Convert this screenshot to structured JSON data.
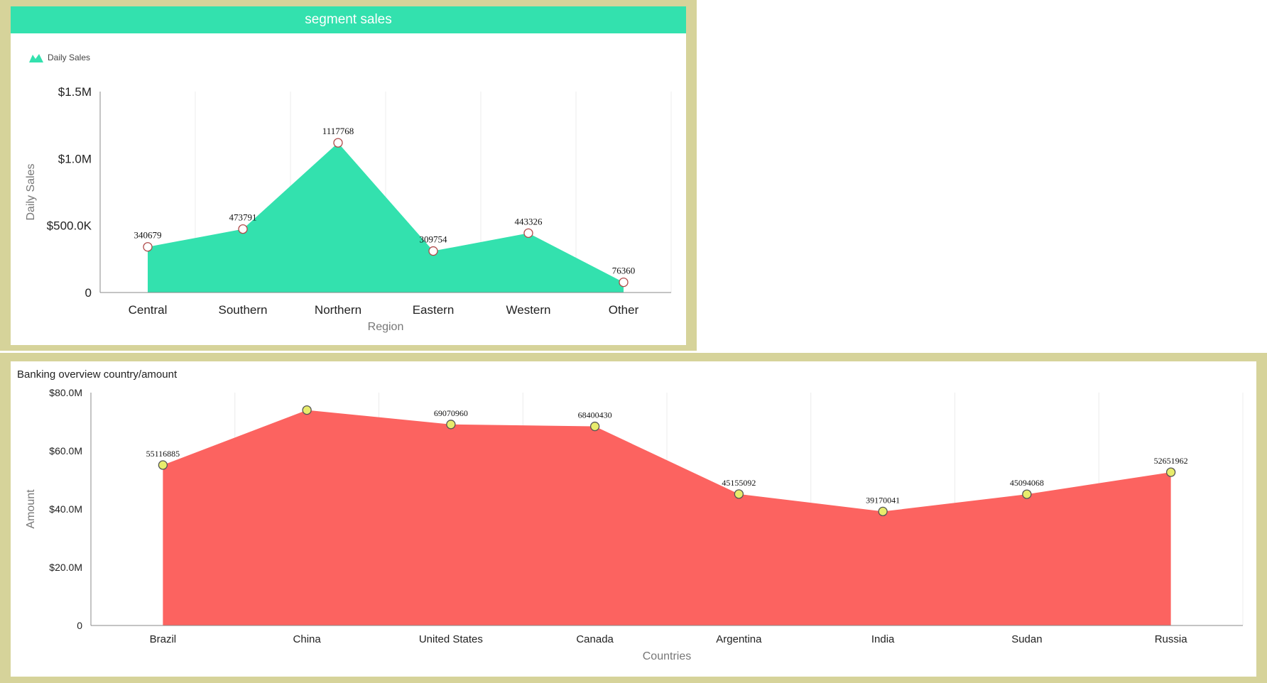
{
  "chart_data": [
    {
      "type": "area",
      "title": "segment sales",
      "legend": "Daily Sales",
      "xlabel": "Region",
      "ylabel": "Daily Sales",
      "categories": [
        "Central",
        "Southern",
        "Northern",
        "Eastern",
        "Western",
        "Other"
      ],
      "values": [
        340679,
        473791,
        1117768,
        309754,
        443326,
        76360
      ],
      "ylim": [
        0,
        1500000
      ],
      "yticks": [
        0,
        500000,
        1000000,
        1500000
      ],
      "ytick_labels": [
        "0",
        "$500.0K",
        "$1.0M",
        "$1.5M"
      ],
      "fill_color": "#33e1ae",
      "marker_fill": "#ffffff",
      "marker_stroke": "#b04a4a"
    },
    {
      "type": "area",
      "title": "Banking overview country/amount",
      "xlabel": "Countries",
      "ylabel": "Amount",
      "categories": [
        "Brazil",
        "China",
        "United States",
        "Canada",
        "Argentina",
        "India",
        "Sudan",
        "Russia"
      ],
      "values": [
        55116885,
        74000000,
        69070960,
        68400430,
        45155092,
        39170041,
        45094068,
        52651962
      ],
      "data_labels": [
        "55116885",
        "",
        "69070960",
        "68400430",
        "45155092",
        "39170041",
        "45094068",
        "52651962"
      ],
      "ylim": [
        0,
        80000000
      ],
      "yticks": [
        0,
        20000000,
        40000000,
        60000000,
        80000000
      ],
      "ytick_labels": [
        "0",
        "$20.0M",
        "$40.0M",
        "$60.0M",
        "$80.0M"
      ],
      "fill_color": "#fc6360",
      "marker_fill": "#e8ec6c",
      "marker_stroke": "#555555"
    }
  ]
}
